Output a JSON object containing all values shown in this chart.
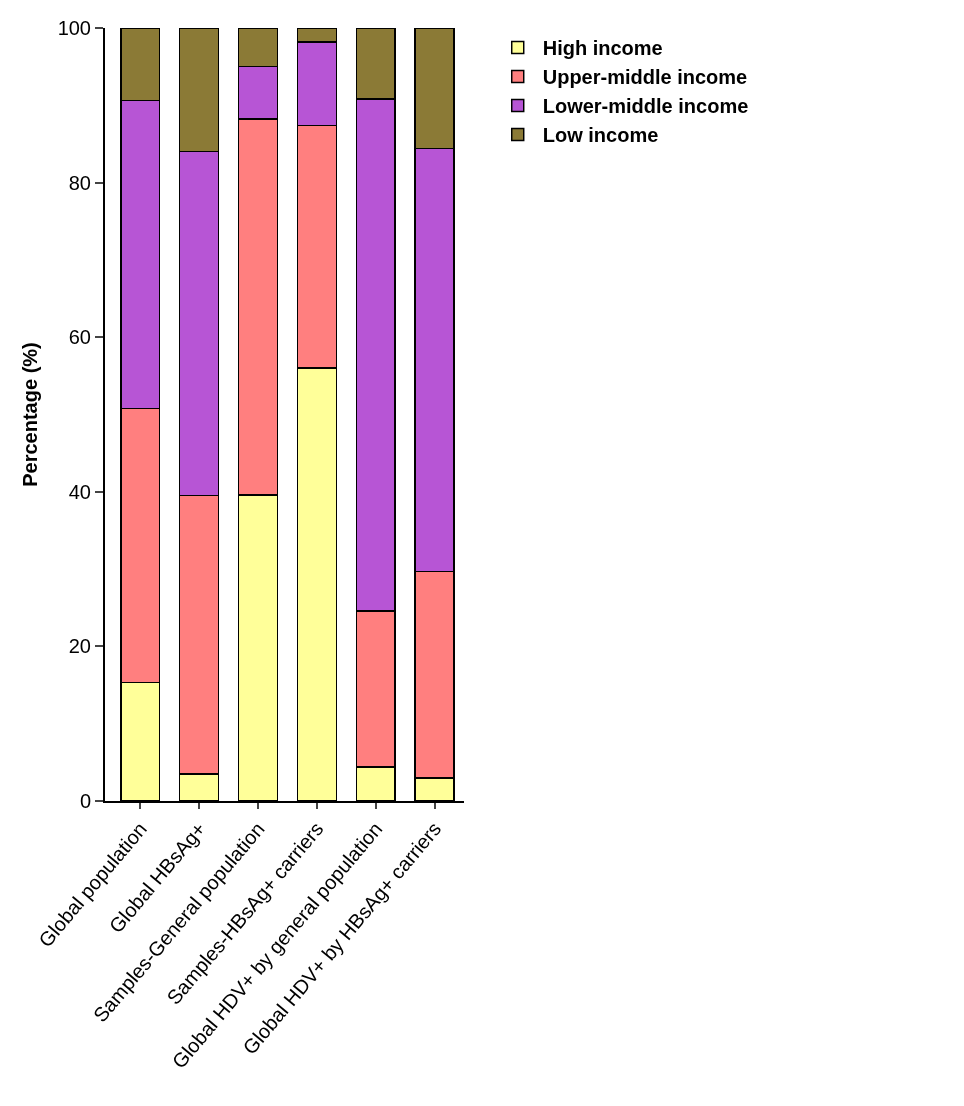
{
  "chart_data": {
    "type": "bar",
    "stacked": true,
    "ylabel": "Percentage (%)",
    "categories": [
      "Global population",
      "Global HBsAg+",
      "Samples-General population",
      "Samples-HBsAg+ carriers",
      "Global HDV+ by general population",
      "Global HDV+ by HBsAg+ carriers"
    ],
    "series": [
      {
        "name": "High income",
        "color": "#ffff99",
        "values": [
          15.3,
          3.5,
          39.6,
          56.0,
          4.4,
          3.0
        ]
      },
      {
        "name": "Upper-middle income",
        "color": "#ff7f7f",
        "values": [
          35.5,
          36.0,
          48.6,
          31.4,
          20.2,
          26.7
        ]
      },
      {
        "name": "Lower-middle income",
        "color": "#b755d5",
        "values": [
          39.8,
          44.5,
          6.8,
          10.8,
          66.2,
          54.7
        ]
      },
      {
        "name": "Low income",
        "color": "#8b7a36",
        "values": [
          9.4,
          16.0,
          5.0,
          1.8,
          9.2,
          15.6
        ]
      }
    ],
    "ylim": [
      0,
      100
    ],
    "yticks": [
      0,
      20,
      40,
      60,
      80,
      100
    ],
    "legend": "top right"
  }
}
